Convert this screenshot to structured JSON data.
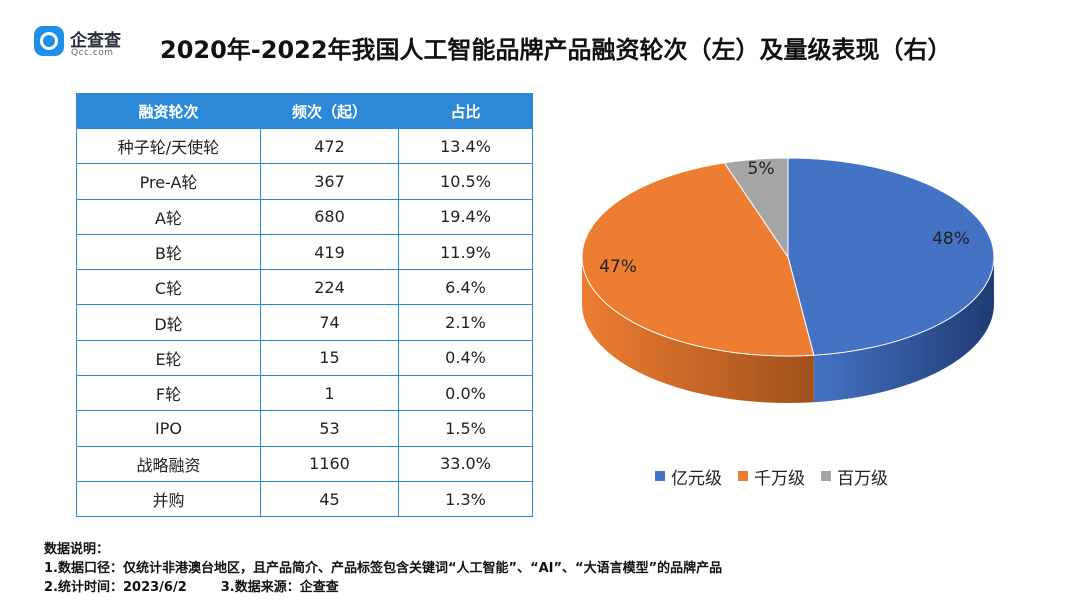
{
  "brand": {
    "name": "企查查",
    "sub": "Qcc.com"
  },
  "title": "2020年-2022年我国人工智能品牌产品融资轮次（左）及量级表现（右）",
  "table": {
    "headers": [
      "融资轮次",
      "频次（起）",
      "占比"
    ],
    "rows": [
      [
        "种子轮/天使轮",
        "472",
        "13.4%"
      ],
      [
        "Pre-A轮",
        "367",
        "10.5%"
      ],
      [
        "A轮",
        "680",
        "19.4%"
      ],
      [
        "B轮",
        "419",
        "11.9%"
      ],
      [
        "C轮",
        "224",
        "6.4%"
      ],
      [
        "D轮",
        "74",
        "2.1%"
      ],
      [
        "E轮",
        "15",
        "0.4%"
      ],
      [
        "F轮",
        "1",
        "0.0%"
      ],
      [
        "IPO",
        "53",
        "1.5%"
      ],
      [
        "战略融资",
        "1160",
        "33.0%"
      ],
      [
        "并购",
        "45",
        "1.3%"
      ]
    ]
  },
  "chart_data": [
    {
      "type": "table",
      "columns": [
        "融资轮次",
        "频次（起）",
        "占比"
      ],
      "rows": [
        [
          "种子轮/天使轮",
          472,
          "13.4%"
        ],
        [
          "Pre-A轮",
          367,
          "10.5%"
        ],
        [
          "A轮",
          680,
          "19.4%"
        ],
        [
          "B轮",
          419,
          "11.9%"
        ],
        [
          "C轮",
          224,
          "6.4%"
        ],
        [
          "D轮",
          74,
          "2.1%"
        ],
        [
          "E轮",
          15,
          "0.4%"
        ],
        [
          "F轮",
          1,
          "0.0%"
        ],
        [
          "IPO",
          53,
          "1.5%"
        ],
        [
          "战略融资",
          1160,
          "33.0%"
        ],
        [
          "并购",
          45,
          "1.3%"
        ]
      ]
    },
    {
      "type": "pie",
      "labels": [
        "亿元级",
        "千万级",
        "百万级"
      ],
      "values": [
        48,
        47,
        5
      ],
      "value_labels": [
        "48%",
        "47%",
        "5%"
      ],
      "colors": [
        "#4472c4",
        "#ed7d31",
        "#a5a5a5"
      ],
      "legend": "bottom",
      "style": "3d"
    }
  ],
  "notes": {
    "heading": "数据说明：",
    "line1": "1.数据口径：仅统计非港澳台地区，且产品简介、产品标签包含关键词“人工智能”、“AI”、“大语言模型”的品牌产品",
    "line2a": "2.统计时间：2023/6/2",
    "line2b": "3.数据来源：企查查"
  }
}
